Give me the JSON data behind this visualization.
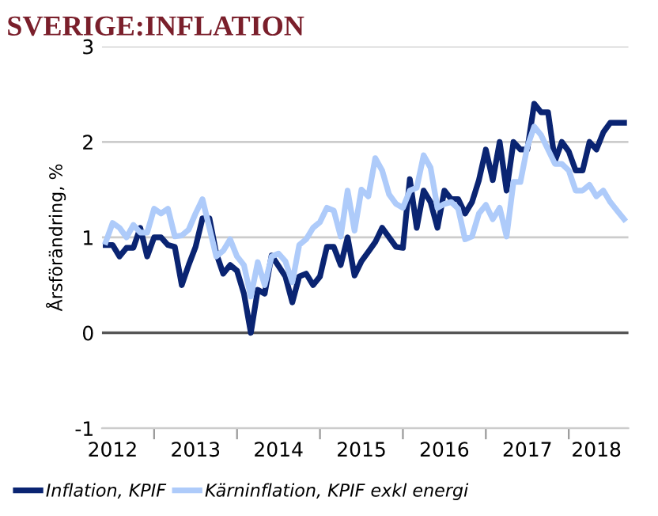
{
  "chart_data": {
    "type": "line",
    "title": "SVERIGE:INFLATION",
    "ylabel": "Årsförändring, %",
    "x": [
      "2012-06",
      "2012-07",
      "2012-08",
      "2012-09",
      "2012-10",
      "2012-11",
      "2012-12",
      "2013-01",
      "2013-02",
      "2013-03",
      "2013-04",
      "2013-05",
      "2013-06",
      "2013-07",
      "2013-08",
      "2013-09",
      "2013-10",
      "2013-11",
      "2013-12",
      "2014-01",
      "2014-02",
      "2014-03",
      "2014-04",
      "2014-05",
      "2014-06",
      "2014-07",
      "2014-08",
      "2014-09",
      "2014-10",
      "2014-11",
      "2014-12",
      "2015-01",
      "2015-02",
      "2015-03",
      "2015-04",
      "2015-05",
      "2015-06",
      "2015-07",
      "2015-08",
      "2015-09",
      "2015-10",
      "2015-11",
      "2015-12",
      "2016-01",
      "2016-02",
      "2016-03",
      "2016-04",
      "2016-05",
      "2016-06",
      "2016-07",
      "2016-08",
      "2016-09",
      "2016-10",
      "2016-11",
      "2016-12",
      "2017-01",
      "2017-02",
      "2017-03",
      "2017-04",
      "2017-05",
      "2017-06",
      "2017-07",
      "2017-08",
      "2017-09",
      "2017-10",
      "2017-11",
      "2017-12",
      "2018-01",
      "2018-02",
      "2018-03",
      "2018-04",
      "2018-05",
      "2018-06",
      "2018-07",
      "2018-08",
      "2018-09"
    ],
    "series": [
      {
        "name": "Inflation, KPIF",
        "color": "#0a2472",
        "values": [
          0.92,
          0.92,
          0.8,
          0.89,
          0.89,
          1.1,
          0.8,
          1.0,
          1.0,
          0.92,
          0.9,
          0.5,
          0.71,
          0.9,
          1.2,
          1.2,
          0.83,
          0.62,
          0.71,
          0.65,
          0.41,
          0.0,
          0.45,
          0.41,
          0.81,
          0.7,
          0.59,
          0.32,
          0.59,
          0.62,
          0.5,
          0.59,
          0.9,
          0.9,
          0.71,
          1.0,
          0.6,
          0.75,
          0.85,
          0.95,
          1.1,
          1.0,
          0.9,
          0.89,
          1.61,
          1.1,
          1.49,
          1.37,
          1.1,
          1.49,
          1.4,
          1.4,
          1.25,
          1.37,
          1.6,
          1.92,
          1.6,
          2.0,
          1.49,
          2.0,
          1.92,
          1.92,
          2.4,
          2.31,
          2.31,
          1.8,
          2.0,
          1.9,
          1.7,
          1.7,
          2.0,
          1.92,
          2.1,
          2.2,
          2.2,
          2.2
        ]
      },
      {
        "name": "Kärninflation, KPIF exkl energi",
        "color": "#aecbfa",
        "values": [
          0.95,
          1.15,
          1.1,
          1.0,
          1.13,
          1.05,
          1.05,
          1.3,
          1.25,
          1.3,
          1.01,
          1.02,
          1.08,
          1.25,
          1.4,
          1.1,
          0.8,
          0.86,
          0.98,
          0.8,
          0.71,
          0.38,
          0.74,
          0.5,
          0.8,
          0.83,
          0.75,
          0.53,
          0.92,
          0.98,
          1.1,
          1.16,
          1.31,
          1.28,
          1.01,
          1.49,
          1.07,
          1.5,
          1.43,
          1.83,
          1.7,
          1.45,
          1.35,
          1.31,
          1.49,
          1.52,
          1.86,
          1.73,
          1.31,
          1.35,
          1.37,
          1.3,
          0.98,
          1.01,
          1.25,
          1.34,
          1.19,
          1.31,
          1.01,
          1.58,
          1.58,
          1.95,
          2.16,
          2.07,
          1.92,
          1.77,
          1.77,
          1.7,
          1.49,
          1.49,
          1.55,
          1.43,
          1.49,
          1.37,
          1.28,
          1.19
        ]
      }
    ],
    "xlim": [
      "2012-05-15",
      "2018-09-20"
    ],
    "xticks": [
      {
        "value": "2013-01",
        "label": null
      },
      {
        "value": "2014-01",
        "label": null
      },
      {
        "value": "2015-01",
        "label": null
      },
      {
        "value": "2016-01",
        "label": null
      },
      {
        "value": "2017-01",
        "label": null
      },
      {
        "value": "2018-01",
        "label": null
      },
      {
        "value": "2012-07",
        "label": "2012"
      },
      {
        "value": "2013-07",
        "label": "2013"
      },
      {
        "value": "2014-07",
        "label": "2014"
      },
      {
        "value": "2015-07",
        "label": "2015"
      },
      {
        "value": "2016-07",
        "label": "2016"
      },
      {
        "value": "2017-07",
        "label": "2017"
      },
      {
        "value": "2018-05",
        "label": "2018"
      }
    ],
    "ylim": [
      -1,
      3
    ],
    "yticks": [
      -1,
      0,
      1,
      2,
      3
    ],
    "grid": "y",
    "ref_lines": [
      {
        "axis": "y",
        "value": 0,
        "color": "#555555"
      }
    ],
    "legend": "bottom",
    "line_style": "solid",
    "marker": "none"
  }
}
